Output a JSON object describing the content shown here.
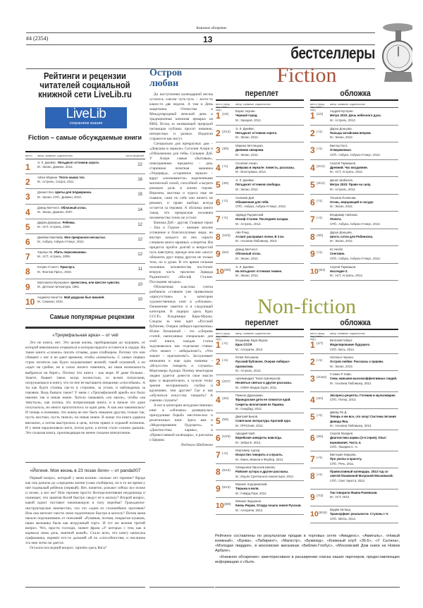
{
  "header": {
    "masthead": "Книжное обозрение",
    "issue": "#4 (2354)",
    "page": "13",
    "section": "бестселлеры"
  },
  "livelib": {
    "title": "Рейтинги и рецензии читателей социальной книжной сети LiveLib.ru",
    "logo_name": "LiveLib",
    "logo_tagline": "сохраняем знания",
    "table_title": "Fiction – самые обсуждаемые книги",
    "columns": [
      "место",
      "автор, название, издательство",
      "число рецензий"
    ],
    "rows": [
      {
        "place": "1",
        "author": "Э. Л. Джеймс.",
        "title": "Пятьдесят оттенков серого.",
        "pub": "М.: Эксмо, Домино, 2012.",
        "count": "22"
      },
      {
        "place": "2",
        "author": "Айзек Мариан.",
        "title": "Тепло наших тел.",
        "pub": "М.: Астрель, Corpus, 2011.",
        "count": "16"
      },
      {
        "place": "3",
        "author": "Дэниел Киз.",
        "title": "Цветы для Элджернона.",
        "pub": "М.: Эксмо; СПб.: Домино, 2010.",
        "count": "15"
      },
      {
        "place": "4",
        "author": "Дэвид Митчелл.",
        "title": "Облачный атлас.",
        "pub": "М.: Эксмо, Домино, 2007.",
        "count": "14"
      },
      {
        "place": "5",
        "author": "Дафна Дюморье.",
        "title": "Ребекка.",
        "pub": "М.: АСТ, Астрель, 2009.",
        "count": "12"
      },
      {
        "place": "6",
        "author": "Джейми Макгвайр.",
        "title": "Мое прекрасное несчастье.",
        "pub": "М.: Азбука, Азбука-Аттикус, 2012.",
        "count": "12"
      },
      {
        "place": "7",
        "author": "Харпер Ли.",
        "title": "Убить пересмешника.",
        "pub": "М.: АСТ, Астрель, 2009.",
        "count": "12"
      },
      {
        "place": "8",
        "author": "Кэтрин Стокетт.",
        "title": "Прислуга.",
        "pub": "М.: Фантом Пресс, 2010.",
        "count": "11"
      },
      {
        "place": "9",
        "author": "Малгожата Мусерович.",
        "title": "Целестина, или Шестое чувство.",
        "pub": "М.: Детская литература, 1981.",
        "count": "10"
      },
      {
        "place": "10",
        "author": "Анджела Нанетти.",
        "title": "Мой дедушка был вишней.",
        "pub": "М.: Самокат, 2010.",
        "count": "10"
      }
    ],
    "reviews_heading": "Самые популярные рецензии",
    "reviews": [
      {
        "title": "«Триумфальная арка» – от veil",
        "body": [
          "Это не книга, нет. Это целая жизнь, пробирающая до мурашек, от которой невозможно оторваться и которая надолго останется в сердце. На такие книги «сложно» писать отзывы, даже спойлером. Потому что они сбивают с ног и не дают времени, чтобы «помыться». С самых первых строк читатель как будто подхватывает волной, такой огромной, а он «идет на гребне, не в силах ничего изменить, но имея возможность выбраться на берег». Потому что книга – как море. И даже больше... Знаете, бывает такое, когда полностью, со всеми потрохами, погружаешься в книгу, что из нее не вытащить никакими «способами». А ты как будто стоишь где-то в сторонке, за углом, и наблюдаешь за героями. Ведь бывало такое? У меня с «Триумфальной аркой» все было именно так и никак иначе. Хотела смаковать «по капле», чтобы «на тянуться», как потока, эта потрясающая книга, и в начале это даже получалось, но много проглотилось за один день. А как она закончилась! И теперь я понимаю, что конец не мог быть никаким другим, только так, пусть жестоко, пусть тяжело, но никак иначе. В конце эта книга ударила внезапно, а потом выстрелила в цель, потом прямо в седьмой позвонок. И у меня парализовало ноги, потом руки, а потом стало сложно дышать. Это сильная книга, производящая не менее сильное впечатление."
        ]
      },
      {
        "title": "«Йогиня. Моя жизнь в 23 позах йоги» – от panda007",
        "body": [
          "Первый вопрос, который у меня возник: сколько лет героине? Вроде как она дожила до «середины жизни (сама сообщила), но в то же время у неё годовалый ребёнок (первый). Нет, понятно, рожают сейчас все позже и позже, а все же? Или героиня просто бесперспективная неудачница и понимает, что занятия йогой быстро сведут её в могилу? Второй вопрос, какой идиот поставит начинающую в позу воробья? Гражданско-инструкторские неизвестно, что это «одни из сложнейших противов? Или она мечтает свести свою подопечную быстро в могилу? Потом меня начало подташнивать от описаний: «Румяная, потная, покрытая пушком, наша малышка была как воздушный торт». И тут же возник третий вопрос. Что, прости господи, значит фраза «У которых с тем, как я кормила свою дочь, внятной кожей». Стало ясно, что книгу написала графоманка, перевёл кто-то дальний «й по «способностям, и писанина эта мне легко не дается.",
          "Остался последний вопрос: причём здесь йога?"
        ]
      }
    ]
  },
  "article": {
    "title": "Остров любви",
    "paragraphs": [
      "До наступления календарной весны осталось совсем чуть-чуть – всего-то каких-то две недели. А там и День защитника Отечества и Международный женский день и традиционная книжная ярмарка на ВВЦ. Вслед за оживающей природой читающая публика просит новинок, интересных и разных. Издатели стараются как могут.",
      "Специально для прекрасных дам – «Девушка в зеркале» Сесилии Ахерн и «Обнаженная для тебя» Сильвии Дэй. У Ахерн самые «бытовые», повседневные предметы – дом, старинная печатная машинка «Ундервуд», «старинное зеркало – вдруг «оказываются» наделенными магической силой, способной «сыграть роковую роль в жизни героев. Впрочем, мистика и чудеса еще не главное, сами по себе они ничего не решают, и право выбора всегда остается за героями. А обложка книги такая, что прекрасная половина человечества точно не устоит.",
      "Книжка Дэй – другая. Главные герои – Ева и Гидеон – внешне вполне успешные и благополучные люди, но внутри каждого из них скрыто слишком много мрачных «секретов. Им придется пройти долгий и непростой путь навстречу, прежде чем они «могут обнажить друг перед другом не только тела, но и души. В это время сильная половина человечества постигает вторую часть трилогии Эдварда Радзинского «Иосиф Сталин. Последняя загадка».",
      "Обложечная классика слегка разбавила «ставшее уже привычным «присутствие» в категории художественных книг в «обложке». Оживление заметно и в следующей категории. В лидерах здесь Крах СССР» Владимира Кара-Мурзы. Следом за ним идет «Русский бубличек. Очерки либерал-прагматика» Юлии Латыниной – это «сборник статей, написанных специально для этой книги, каждая статья задумывалась как отдельная ставка: «Что значит – либерализм?», «Что значит – прагматизм?». Заслуживает внимания и еще одна новинка – «Искусство говорить и слушать» Мортимера Адлера. Почему некоторым людям удается донести свои мысли ярко и выразительно, а чужую точку зрения воспринимать глубже и вдумчивее, чем другим? Где и как «обучиться искусству говорить? А умению слушать?",
      "А вот в категории нехудожественных книг в «обложке» развернулась причудливая борьба мистических и религиозных книг. Здесь вам и «Моделирование будущего», и «Диагностика кармы», и «Православный календарь», и рассказы о Церкви."
    ],
    "signature": "Людмила Шибанова"
  },
  "fiction": {
    "title": "Fiction",
    "col_hard": "переплет",
    "col_soft": "обложка",
    "head_place": "место (пред. нед./ всего нед.)",
    "head_info": "автор, название, издательство",
    "hard": [
      {
        "place": "1",
        "prev": "(1/6)",
        "author": "Борис Акунин.",
        "title": "Черный город.",
        "pub": "М.: Захаров, 2012."
      },
      {
        "place": "2",
        "prev": "(2/13)",
        "author": "Э. Л. Джеймс.",
        "title": "Пятьдесят оттенков серого.",
        "pub": "М.: Эксмо, 2012."
      },
      {
        "place": "3",
        "prev": "(3/5)",
        "author": "Марина Метлицкая.",
        "title": "Дневник свекрови.",
        "pub": "М.: Эксмо, 2012."
      },
      {
        "place": "4",
        "prev": "(-/1)",
        "author": "Сесилия Ахерн.",
        "title": "Девушка в зеркале: повесть, рассказы.",
        "pub": "М.: Иностранка, 2013."
      },
      {
        "place": "5",
        "prev": "(4/5)",
        "author": "Э. Л. Джеймс.",
        "title": "Пятьдесят оттенков свободы.",
        "pub": "М.: Эксмо, 2012."
      },
      {
        "place": "6",
        "prev": "(-/1)",
        "author": "Сильвия Дэй.",
        "title": "Обнаженная для тебя.",
        "pub": "СПб.: Азбука, Азбука-Аттикус, 2013."
      },
      {
        "place": "7",
        "prev": "(-/1)",
        "author": "Эдвард Радзинский.",
        "title": "Иосиф Сталин. Последняя загадка.",
        "pub": "М.: Астрель, 2012."
      },
      {
        "place": "8",
        "prev": "(10/3)",
        "author": "Айн Рэнд.",
        "title": "Атлант расправил плечи. В 3 кн.",
        "pub": "М.: Альпина Паблишер, 2013."
      },
      {
        "place": "9",
        "prev": "(5/4)",
        "author": "Дэвид Митчелл.",
        "title": "Облачный атлас.",
        "pub": "М.: Эксмо, 2012."
      },
      {
        "place": "10",
        "prev": "(6/8)",
        "author": "Э. Л. Джеймс.",
        "title": "На пятьдесят оттенков темнее.",
        "pub": "М.: Эксмо, 2012."
      }
    ],
    "soft": [
      {
        "place": "1",
        "prev": "(1/2)",
        "author": "Андрей Буторин.",
        "title": "Метро 2033: Дочь небесного духа.",
        "pub": "М.: Астрель, 2013."
      },
      {
        "place": "2",
        "prev": "(-/1)",
        "author": "Дарья Донцова.",
        "title": "Пальцы китайским веером.",
        "pub": "М.: Эксмо, 2012."
      },
      {
        "place": "3",
        "prev": "(-/1)",
        "author": "Виктор Гюго.",
        "title": "Отверженные.",
        "pub": "СПб.: Азбука, Азбука-Аттикус, 2013."
      },
      {
        "place": "4",
        "prev": "(2/12)",
        "author": "Сергей Тармашев.",
        "title": "Древний. Час воздаяния.",
        "pub": "М.: АСТ, Астрель, 2012."
      },
      {
        "place": "5",
        "prev": "(3/12)",
        "author": "Денис Шабалов.",
        "title": "Метро 2033: Право на силу.",
        "pub": "М.: Астрель, 2012."
      },
      {
        "place": "6",
        "prev": "(-/1)",
        "author": "Татьяна Полякова.",
        "title": "Огонь, мерцающий в сосуде.",
        "pub": "М.: Эксмо, 2012."
      },
      {
        "place": "7",
        "prev": "(-/1)",
        "author": "Владимир Набоков.",
        "title": "Лолита.",
        "pub": "СПб.: Азбука, Азбука-Аттикус, 2013."
      },
      {
        "place": "8",
        "prev": "(4/5)",
        "author": "Дарья Донцова.",
        "title": "Шесть соток для Робинзона.",
        "pub": "М.: Эксмо, 2012."
      },
      {
        "place": "9",
        "prev": "(-/1)",
        "author": "Ю Несбё.",
        "title": "Снеговик.",
        "pub": "СПб.: Азбука, Азбука-Аттикус, 2013."
      },
      {
        "place": "10",
        "prev": "(5/4)",
        "author": "Сергей Тармашев.",
        "title": "Наследие 2.",
        "pub": "М.: АСТ, Астрель, 2012."
      }
    ]
  },
  "nonfiction": {
    "title": "Non-fiction",
    "col_hard": "переплет",
    "col_soft": "обложка",
    "head_place": "место (пред. нед./ всего нед.)",
    "head_info": "автор, название, издательство",
    "hard": [
      {
        "place": "1",
        "prev": "(-/1)",
        "author": "Владимир Кара-Мурза.",
        "title": "Крах СССР.",
        "pub": "М.: Алгоритм, 2013."
      },
      {
        "place": "2",
        "prev": "(-/1)",
        "author": "Юлия Латынина.",
        "title": "Русский бубличек. Очерки либерал-прагматика.",
        "pub": "М.: Астрель, 2012."
      },
      {
        "place": "3",
        "prev": "(2/37)",
        "author": "Архимандрит Тихон (Шевкунов).",
        "title": "Несвятые святые и другие рассказы.",
        "pub": "М.: ОЛМА Медиа Групп, 2011."
      },
      {
        "place": "4",
        "prev": "(3/4)",
        "author": "Памела Друкерман.",
        "title": "Французские дети не плюются едой: Секреты воспитания из Парижа.",
        "pub": "М.: Синдбад, 2012."
      },
      {
        "place": "5",
        "prev": "(5/6)",
        "author": "Дмитрий Быков.",
        "title": "Советская литература. Краткий курс.",
        "pub": "М.: ПРОЗАиК, 2012."
      },
      {
        "place": "6",
        "prev": "(10/3)",
        "author": "Аркадий Хайт.",
        "title": "Еврейские анекдоты навсегда.",
        "pub": "М.: Зебра Е, 2012."
      },
      {
        "place": "7",
        "prev": "(-/1)",
        "author": "Мортимер Адлер.",
        "title": "Искусство говорить и слушать.",
        "pub": "М.: Манн, Иванов и Фербер, 2013."
      },
      {
        "place": "8",
        "prev": "(5/10)",
        "author": "Священник Ярослав Шипов.",
        "title": "Райские хутора и другие рассказы.",
        "pub": "М.: Изд-во Сретенского монастыря, 2012."
      },
      {
        "place": "9",
        "prev": "(6/13)",
        "author": "Михаил Ходорковский.",
        "title": "Тюрьма и воля.",
        "pub": "М.: Говард Рорк, 2012."
      },
      {
        "place": "10",
        "prev": "(8/8)",
        "author": "Михаил Задорнов.",
        "title": "Князь Рюрик. Откуда пошла земля Русская.",
        "pub": "М.: Алгоритм, 2012."
      }
    ],
    "soft": [
      {
        "place": "1",
        "prev": "(1/7)",
        "author": "Виталий Гиберт.",
        "title": "Моделирование будущего.",
        "pub": "СПб.: Весь, 2012."
      },
      {
        "place": "2",
        "prev": "(-/1)",
        "author": "Наталья Черных.",
        "title": "Остров любви: Рассказы о Церкви.",
        "pub": "М.: Эксмо, 2013."
      },
      {
        "place": "3",
        "prev": "(2/162)",
        "author": "Стивен Р. Кови.",
        "title": "Семь навыков высокоэффективных людей.",
        "pub": "М.: Альпина Паблишер, 2012."
      },
      {
        "place": "4",
        "prev": "(4/4)",
        "author": "",
        "title": "Экспресс-рецепты. Готовим в мультиварке.",
        "pub": "СПб.: Питер, 2013."
      },
      {
        "place": "5",
        "prev": "(-/1)",
        "author": "Давид Ян Д.",
        "title": "Теперь я ем все, что хочу! Система питания Давида Яна.",
        "pub": "М.: Альпина Паблишер, 2013."
      },
      {
        "place": "6",
        "prev": "(3/6)",
        "author": "Сергей Лазарев.",
        "title": "Диагностика кармы (2-я серия). Опыт выживания. Часть 4.",
        "pub": "СПб.: Лазарев С. Н."
      },
      {
        "place": "7",
        "prev": "(-/1)",
        "author": "Виктория Карцева.",
        "title": "Про уколы и красоту.",
        "pub": "СПб.: Речь, 2011."
      },
      {
        "place": "8",
        "prev": "(-/1)",
        "author": "",
        "title": "Православный календарь. 2013 год со святой блаженной Матроной Московской.",
        "pub": "СПб.: Свет Христа, 2012."
      },
      {
        "place": "9",
        "prev": "(7/3)",
        "author": "",
        "title": "Так говорила Фаина Раневская.",
        "pub": "М.: АСТ, 2013."
      },
      {
        "place": "10",
        "prev": "(8/15)",
        "author": "Вадим Зеланд.",
        "title": "Трансерфинг реальности. Ступень I–V.",
        "pub": "СПб.: ВЕСЬ, 2012."
      }
    ]
  },
  "footer": {
    "p1": "Рейтинги составлены по результатам продаж в торговых сетях «Амадеос», «Амиталь», «Новый книжный», «Буква», «Лабиринт», «Магистр», «Буквоед», «Книжный клуб «36.6», «У Сытина», «Молодая гвардия», в московских магазинах «Библио-Глобус», «Московский Дом книги на Новом Арбате».",
    "p2": "«Книжное обозрение» заинтересовано в расширении списка наших партнеров, предоставляющих информацию о сбыте."
  },
  "colors": {
    "place_number": "#b8662a",
    "fiction_title": "#a8523a",
    "nonfiction_title": "#9aa040",
    "article_title": "#2d5c8f",
    "livelib_blue": "#2f65b5"
  }
}
